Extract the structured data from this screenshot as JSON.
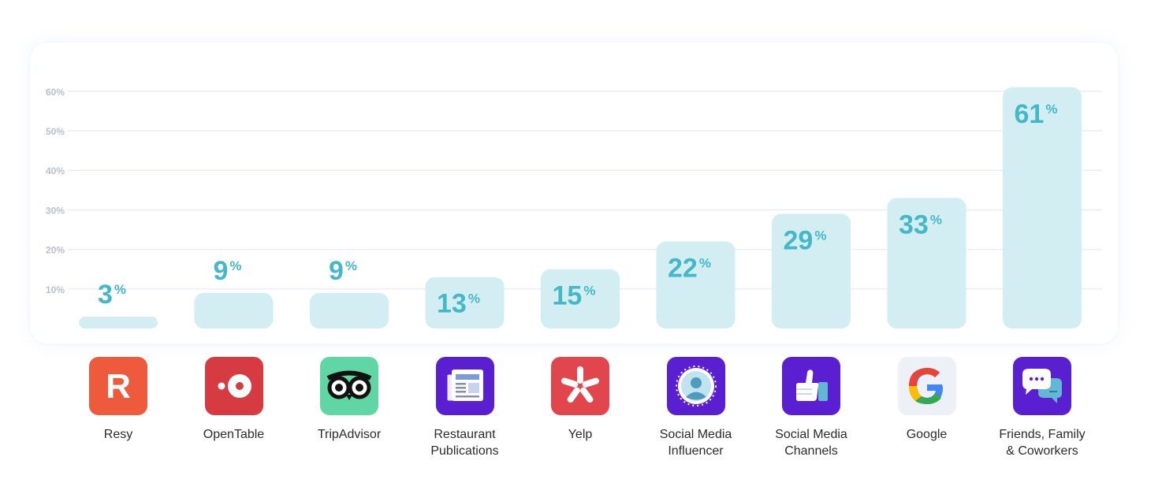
{
  "chart_data": {
    "type": "bar",
    "title": "",
    "xlabel": "",
    "ylabel": "",
    "ylim": [
      0,
      60
    ],
    "yticks": [
      "10%",
      "20%",
      "30%",
      "40%",
      "50%",
      "60%"
    ],
    "ytick_values": [
      10,
      20,
      30,
      40,
      50,
      60
    ],
    "grid": true,
    "categories": [
      "Resy",
      "OpenTable",
      "TripAdvisor",
      "Restaurant\nPublications",
      "Yelp",
      "Social Media\nInfluencer",
      "Social Media\nChannels",
      "Google",
      "Friends, Family\n& Coworkers"
    ],
    "values": [
      3,
      9,
      9,
      13,
      15,
      22,
      29,
      33,
      61
    ],
    "value_labels": [
      "3",
      "9",
      "9",
      "13",
      "15",
      "22",
      "29",
      "33",
      "61"
    ],
    "value_suffix": "%",
    "icons": [
      "resy-icon",
      "opentable-icon",
      "tripadvisor-icon",
      "newspaper-icon",
      "yelp-icon",
      "influencer-icon",
      "thumbs-up-icon",
      "google-icon",
      "chat-bubbles-icon"
    ],
    "colors": {
      "bar": "#d3eef2",
      "value_text": "#45b8c8",
      "grid": "#e8edf6",
      "tick_text": "#b7bfcd",
      "label_text": "#2b2b2b"
    }
  }
}
